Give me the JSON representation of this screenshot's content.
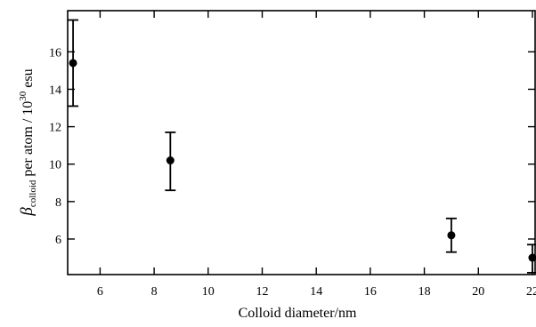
{
  "chart_data": {
    "type": "scatter",
    "xlabel": "Colloid diameter/nm",
    "ylabel": {
      "symbol": "β",
      "subscript": "colloid",
      "text": " per atom / 10",
      "superscript": "30",
      "unit": " esu"
    },
    "xlim": [
      4.8,
      22.1
    ],
    "ylim": [
      4.1,
      18.2
    ],
    "x_ticks": [
      6,
      8,
      10,
      12,
      14,
      16,
      18,
      20,
      22
    ],
    "y_ticks": [
      6,
      8,
      10,
      12,
      14,
      16
    ],
    "grid": false,
    "series": [
      {
        "x": [
          5.0,
          8.6,
          19.0,
          22.0
        ],
        "y": [
          15.4,
          10.2,
          6.2,
          5.0
        ],
        "y_err_low": [
          13.1,
          8.6,
          5.3,
          4.2
        ],
        "y_err_high": [
          17.7,
          11.7,
          7.1,
          5.7
        ]
      }
    ]
  }
}
